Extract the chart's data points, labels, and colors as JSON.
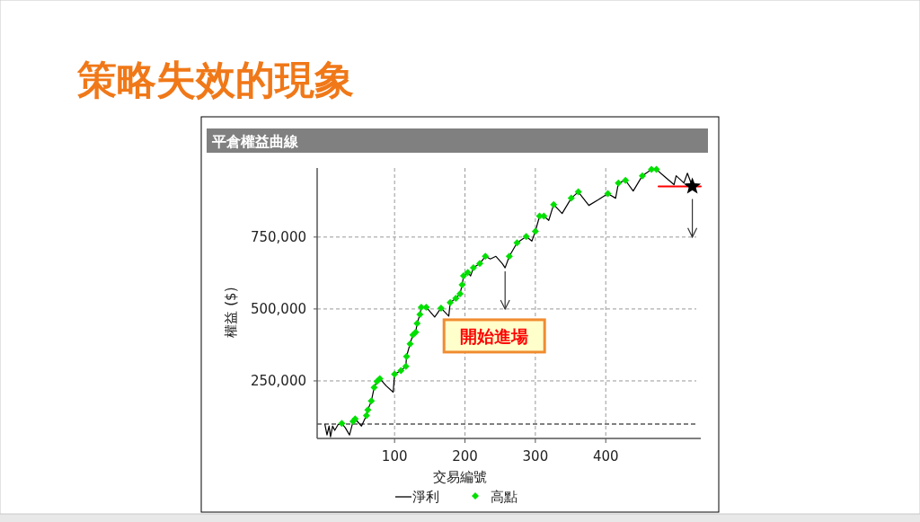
{
  "chart_data": {
    "type": "line",
    "title": "策略失效的現象",
    "subtitle": "平倉權益曲線",
    "xlabel": "交易編號",
    "ylabel": "權益 ($)",
    "xlim": [
      -10,
      535
    ],
    "xticks": [
      100,
      200,
      300,
      400
    ],
    "ylim": [
      50000,
      990000
    ],
    "yticks": [
      {
        "value": 250000,
        "label": "250,000"
      },
      {
        "value": 500000,
        "label": "500,000"
      },
      {
        "value": 750000,
        "label": "750,000"
      }
    ],
    "grid": true,
    "legend": "bottom",
    "series": [
      {
        "name": "淨利",
        "color": "#000000",
        "marker": "none",
        "x": [
          1,
          4,
          7,
          9,
          12,
          15,
          20,
          25,
          30,
          36,
          41,
          44,
          53,
          60,
          62,
          67,
          71,
          75,
          79,
          88,
          98,
          100,
          109,
          116,
          117,
          122,
          126,
          130,
          132,
          136,
          138,
          145,
          157,
          166,
          177,
          179,
          187,
          193,
          196,
          198,
          204,
          208,
          212,
          221,
          229,
          236,
          244,
          253,
          257,
          263,
          274,
          287,
          295,
          300,
          306,
          312,
          319,
          326,
          338,
          351,
          361,
          376,
          389,
          403,
          414,
          418,
          428,
          439,
          452,
          465,
          472,
          485,
          497,
          500,
          511,
          516,
          523
        ],
        "values": [
          99000,
          62000,
          93000,
          56000,
          93000,
          78000,
          99000,
          102000,
          87000,
          62000,
          109000,
          118000,
          93000,
          130000,
          149000,
          180000,
          227000,
          248000,
          258000,
          233000,
          211000,
          273000,
          286000,
          301000,
          335000,
          379000,
          410000,
          419000,
          450000,
          481000,
          506000,
          506000,
          472000,
          503000,
          475000,
          522000,
          537000,
          553000,
          584000,
          615000,
          627000,
          615000,
          643000,
          658000,
          683000,
          674000,
          683000,
          658000,
          643000,
          683000,
          730000,
          752000,
          736000,
          770000,
          823000,
          823000,
          808000,
          863000,
          832000,
          885000,
          907000,
          860000,
          879000,
          901000,
          885000,
          938000,
          947000,
          910000,
          963000,
          985000,
          985000,
          957000,
          932000,
          963000,
          938000,
          972000,
          926000
        ]
      },
      {
        "name": "高點",
        "type": "scatter",
        "color": "#00e000",
        "marker": "diamond",
        "x": [
          25,
          41,
          44,
          60,
          62,
          67,
          71,
          75,
          79,
          100,
          109,
          116,
          117,
          122,
          126,
          130,
          132,
          136,
          138,
          145,
          166,
          179,
          187,
          193,
          196,
          198,
          204,
          212,
          221,
          229,
          263,
          274,
          287,
          300,
          306,
          312,
          326,
          351,
          361,
          403,
          418,
          428,
          452,
          465,
          472
        ],
        "values": [
          102000,
          109000,
          118000,
          130000,
          149000,
          180000,
          227000,
          248000,
          258000,
          273000,
          286000,
          301000,
          335000,
          379000,
          410000,
          419000,
          450000,
          481000,
          506000,
          506000,
          503000,
          522000,
          537000,
          553000,
          584000,
          615000,
          627000,
          643000,
          658000,
          683000,
          683000,
          730000,
          752000,
          770000,
          823000,
          823000,
          863000,
          885000,
          907000,
          901000,
          938000,
          947000,
          963000,
          985000,
          985000
        ]
      },
      {
        "color": "#ff0000",
        "marker": "none",
        "x": [
          475,
          535
        ],
        "values": [
          926000,
          926000
        ]
      },
      {
        "type": "scatter",
        "color": "#000000",
        "marker": "star",
        "x": [
          523
        ],
        "values": [
          926000
        ]
      }
    ],
    "ref_lines": [
      {
        "axis": "y",
        "value": 100000,
        "color": "#000000",
        "line_style": "dashed"
      }
    ],
    "annotations": [
      {
        "text": "開始進場",
        "x": 257,
        "y": 643000
      }
    ]
  }
}
